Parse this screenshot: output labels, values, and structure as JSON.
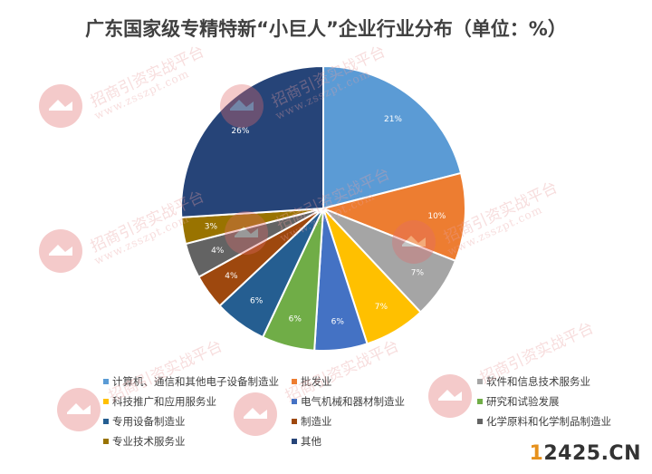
{
  "chart_data": {
    "type": "pie",
    "title": "广东国家级专精特新“小巨人”企业行业分布（单位：%）",
    "categories": [
      "计算机、通信和其他电子设备制造业",
      "批发业",
      "软件和信息技术服务业",
      "科技推广和应用服务业",
      "电气机械和器材制造业",
      "研究和试验发展",
      "专用设备制造业",
      "制造业",
      "化学原料和化学制品制造业",
      "专业技术服务业",
      "其他"
    ],
    "values": [
      21,
      10,
      7,
      7,
      6,
      6,
      6,
      4,
      4,
      3,
      26
    ],
    "data_labels": [
      "21%",
      "10%",
      "7%",
      "7%",
      "6%",
      "6%",
      "6%",
      "4%",
      "4%",
      "3%",
      "26%"
    ],
    "colors": [
      "#5b9bd5",
      "#ed7d31",
      "#a5a5a5",
      "#ffc000",
      "#4472c4",
      "#70ad47",
      "#255e91",
      "#9e480e",
      "#636363",
      "#997300",
      "#264478"
    ],
    "legend_position": "bottom"
  },
  "watermark": {
    "text": "招商引资实战平台",
    "url": "www.zsszpt.com",
    "icon": "handshake-logo-icon"
  },
  "brand": {
    "accent": "1",
    "main": "2425.CN"
  }
}
